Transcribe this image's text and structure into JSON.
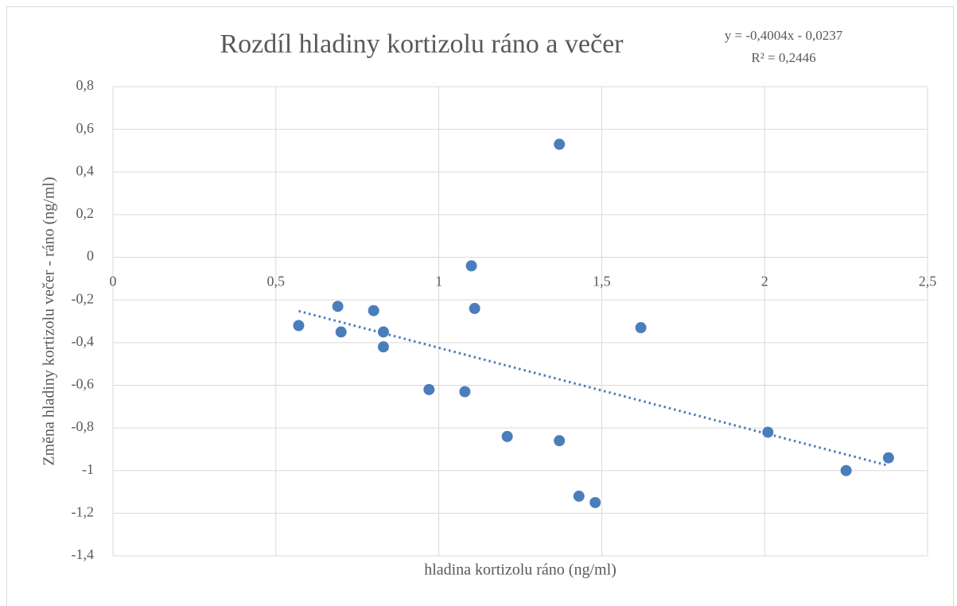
{
  "chart_data": {
    "type": "scatter",
    "title": "Rozdíl hladiny kortizolu ráno a večer",
    "x_label": "hladina kortizolu ráno (ng/ml)",
    "y_label": "Změna hladiny kortizolu večer - ráno (ng/ml)",
    "trendline": {
      "slope": -0.4004,
      "intercept": -0.0237,
      "equation": "y = -0,4004x - 0,0237",
      "r2_label": "R² = 0,2446",
      "style": "dotted"
    },
    "series": [
      {
        "color": "#4a7ebb",
        "x": [
          0.57,
          0.69,
          0.7,
          0.8,
          0.83,
          0.83,
          0.97,
          1.08,
          1.1,
          1.11,
          1.21,
          1.37,
          1.37,
          1.43,
          1.48,
          1.62,
          2.01,
          2.25,
          2.38
        ],
        "values": [
          -0.32,
          -0.23,
          -0.35,
          -0.25,
          -0.35,
          -0.42,
          -0.62,
          -0.63,
          -0.04,
          -0.24,
          -0.84,
          0.53,
          -0.86,
          -1.12,
          -1.15,
          -0.33,
          -0.82,
          -1.0,
          -0.94
        ]
      }
    ],
    "xlim": [
      0,
      2.5
    ],
    "xticks": [
      0,
      {
        "value": 0.5,
        "label": "0,5"
      },
      1,
      {
        "value": 1.5,
        "label": "1,5"
      },
      2,
      {
        "value": 2.5,
        "label": "2,5"
      }
    ],
    "ylim": [
      -1.4,
      0.8
    ],
    "yticks": [
      {
        "value": -1.4,
        "label": "-1,4"
      },
      {
        "value": -1.2,
        "label": "-1,2"
      },
      -1,
      {
        "value": -0.8,
        "label": "-0,8"
      },
      {
        "value": -0.6,
        "label": "-0,6"
      },
      {
        "value": -0.4,
        "label": "-0,4"
      },
      {
        "value": -0.2,
        "label": "-0,2"
      },
      0,
      {
        "value": 0.2,
        "label": "0,2"
      },
      {
        "value": 0.4,
        "label": "0,4"
      },
      {
        "value": 0.6,
        "label": "0,6"
      },
      {
        "value": 0.8,
        "label": "0,8"
      }
    ],
    "grid": true
  }
}
